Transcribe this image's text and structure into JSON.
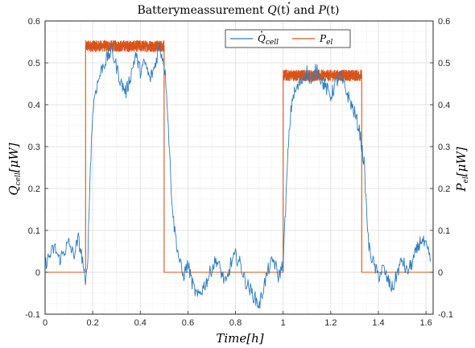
{
  "chart_data": {
    "type": "line",
    "title": "Batterymeassurement Q̇(t) and P(t)",
    "title_parts": {
      "prefix": "Batterymeassurement ",
      "q_symbol": "Q",
      "q_arg": "(t) and ",
      "p_symbol": "P",
      "p_arg": "(t)"
    },
    "xlabel": "Time[h]",
    "xlabel_parts": {
      "main": "Time",
      "unit": "[h]"
    },
    "ylabel_left": "Q̇cell[μW]",
    "ylabel_left_parts": {
      "symbol": "Q",
      "sub": "cell",
      "unit": "[μW]"
    },
    "ylabel_right": "Pel[μW]",
    "ylabel_right_parts": {
      "symbol": "P",
      "sub": "el",
      "unit": "[μW]"
    },
    "xlim": [
      0,
      1.63
    ],
    "ylim": [
      -0.1,
      0.6
    ],
    "x_ticks": [
      "0",
      "0.2",
      "0.4",
      "0.6",
      "0.8",
      "1",
      "1.2",
      "1.4",
      "1.6"
    ],
    "x_tick_values": [
      0,
      0.2,
      0.4,
      0.6,
      0.8,
      1.0,
      1.2,
      1.4,
      1.6
    ],
    "y_ticks": [
      "-0.1",
      "0",
      "0.1",
      "0.2",
      "0.3",
      "0.4",
      "0.5",
      "0.6"
    ],
    "y_tick_values": [
      -0.1,
      0,
      0.1,
      0.2,
      0.3,
      0.4,
      0.5,
      0.6
    ],
    "grid": true,
    "minor_grid": true,
    "legend_position": "top-center",
    "series": [
      {
        "name": "Q̇cell",
        "legend_parts": {
          "symbol": "Q",
          "sub": "cell"
        },
        "color": "#2e7dbf",
        "noise": "high-frequency",
        "points": [
          [
            0.0,
            0.02
          ],
          [
            0.02,
            0.04
          ],
          [
            0.04,
            0.06
          ],
          [
            0.06,
            0.03
          ],
          [
            0.08,
            0.05
          ],
          [
            0.1,
            0.07
          ],
          [
            0.12,
            0.04
          ],
          [
            0.14,
            0.08
          ],
          [
            0.16,
            0.02
          ],
          [
            0.17,
            -0.04
          ],
          [
            0.18,
            0.05
          ],
          [
            0.19,
            0.25
          ],
          [
            0.2,
            0.38
          ],
          [
            0.21,
            0.43
          ],
          [
            0.22,
            0.45
          ],
          [
            0.24,
            0.49
          ],
          [
            0.26,
            0.51
          ],
          [
            0.28,
            0.53
          ],
          [
            0.3,
            0.49
          ],
          [
            0.32,
            0.45
          ],
          [
            0.34,
            0.43
          ],
          [
            0.36,
            0.47
          ],
          [
            0.38,
            0.52
          ],
          [
            0.4,
            0.48
          ],
          [
            0.42,
            0.5
          ],
          [
            0.44,
            0.46
          ],
          [
            0.46,
            0.49
          ],
          [
            0.48,
            0.54
          ],
          [
            0.5,
            0.5
          ],
          [
            0.51,
            0.44
          ],
          [
            0.52,
            0.32
          ],
          [
            0.53,
            0.2
          ],
          [
            0.54,
            0.12
          ],
          [
            0.56,
            0.04
          ],
          [
            0.58,
            -0.01
          ],
          [
            0.6,
            0.02
          ],
          [
            0.62,
            -0.03
          ],
          [
            0.64,
            -0.06
          ],
          [
            0.66,
            -0.04
          ],
          [
            0.68,
            -0.02
          ],
          [
            0.7,
            0.01
          ],
          [
            0.72,
            0.03
          ],
          [
            0.74,
            0.0
          ],
          [
            0.76,
            -0.03
          ],
          [
            0.78,
            0.02
          ],
          [
            0.8,
            0.04
          ],
          [
            0.82,
            0.02
          ],
          [
            0.84,
            -0.02
          ],
          [
            0.86,
            -0.04
          ],
          [
            0.88,
            -0.06
          ],
          [
            0.9,
            -0.08
          ],
          [
            0.92,
            -0.03
          ],
          [
            0.94,
            0.01
          ],
          [
            0.96,
            0.03
          ],
          [
            0.98,
            -0.01
          ],
          [
            1.0,
            0.02
          ],
          [
            1.01,
            0.15
          ],
          [
            1.02,
            0.28
          ],
          [
            1.03,
            0.37
          ],
          [
            1.04,
            0.42
          ],
          [
            1.06,
            0.44
          ],
          [
            1.08,
            0.46
          ],
          [
            1.1,
            0.48
          ],
          [
            1.12,
            0.45
          ],
          [
            1.14,
            0.49
          ],
          [
            1.16,
            0.46
          ],
          [
            1.18,
            0.44
          ],
          [
            1.2,
            0.42
          ],
          [
            1.22,
            0.45
          ],
          [
            1.24,
            0.47
          ],
          [
            1.26,
            0.44
          ],
          [
            1.28,
            0.41
          ],
          [
            1.3,
            0.38
          ],
          [
            1.32,
            0.34
          ],
          [
            1.33,
            0.3
          ],
          [
            1.34,
            0.26
          ],
          [
            1.35,
            0.15
          ],
          [
            1.36,
            0.06
          ],
          [
            1.38,
            0.02
          ],
          [
            1.4,
            -0.01
          ],
          [
            1.42,
            0.01
          ],
          [
            1.44,
            -0.02
          ],
          [
            1.46,
            -0.04
          ],
          [
            1.48,
            0.0
          ],
          [
            1.5,
            0.03
          ],
          [
            1.52,
            0.0
          ],
          [
            1.54,
            0.02
          ],
          [
            1.56,
            0.05
          ],
          [
            1.58,
            0.08
          ],
          [
            1.6,
            0.06
          ],
          [
            1.62,
            0.03
          ]
        ]
      },
      {
        "name": "Pel",
        "legend_parts": {
          "symbol": "P",
          "sub": "el"
        },
        "color": "#d95319",
        "noise": "high-frequency",
        "points": [
          [
            0.0,
            0.0
          ],
          [
            0.17,
            0.0
          ],
          [
            0.17,
            0.54
          ],
          [
            0.5,
            0.54
          ],
          [
            0.5,
            0.0
          ],
          [
            1.0,
            0.0
          ],
          [
            1.0,
            0.47
          ],
          [
            1.33,
            0.47
          ],
          [
            1.33,
            0.0
          ],
          [
            1.63,
            0.0
          ]
        ],
        "noise_bands": [
          {
            "x_range": [
              0.17,
              0.5
            ],
            "level": 0.54
          },
          {
            "x_range": [
              1.0,
              1.33
            ],
            "level": 0.47
          }
        ]
      }
    ]
  }
}
